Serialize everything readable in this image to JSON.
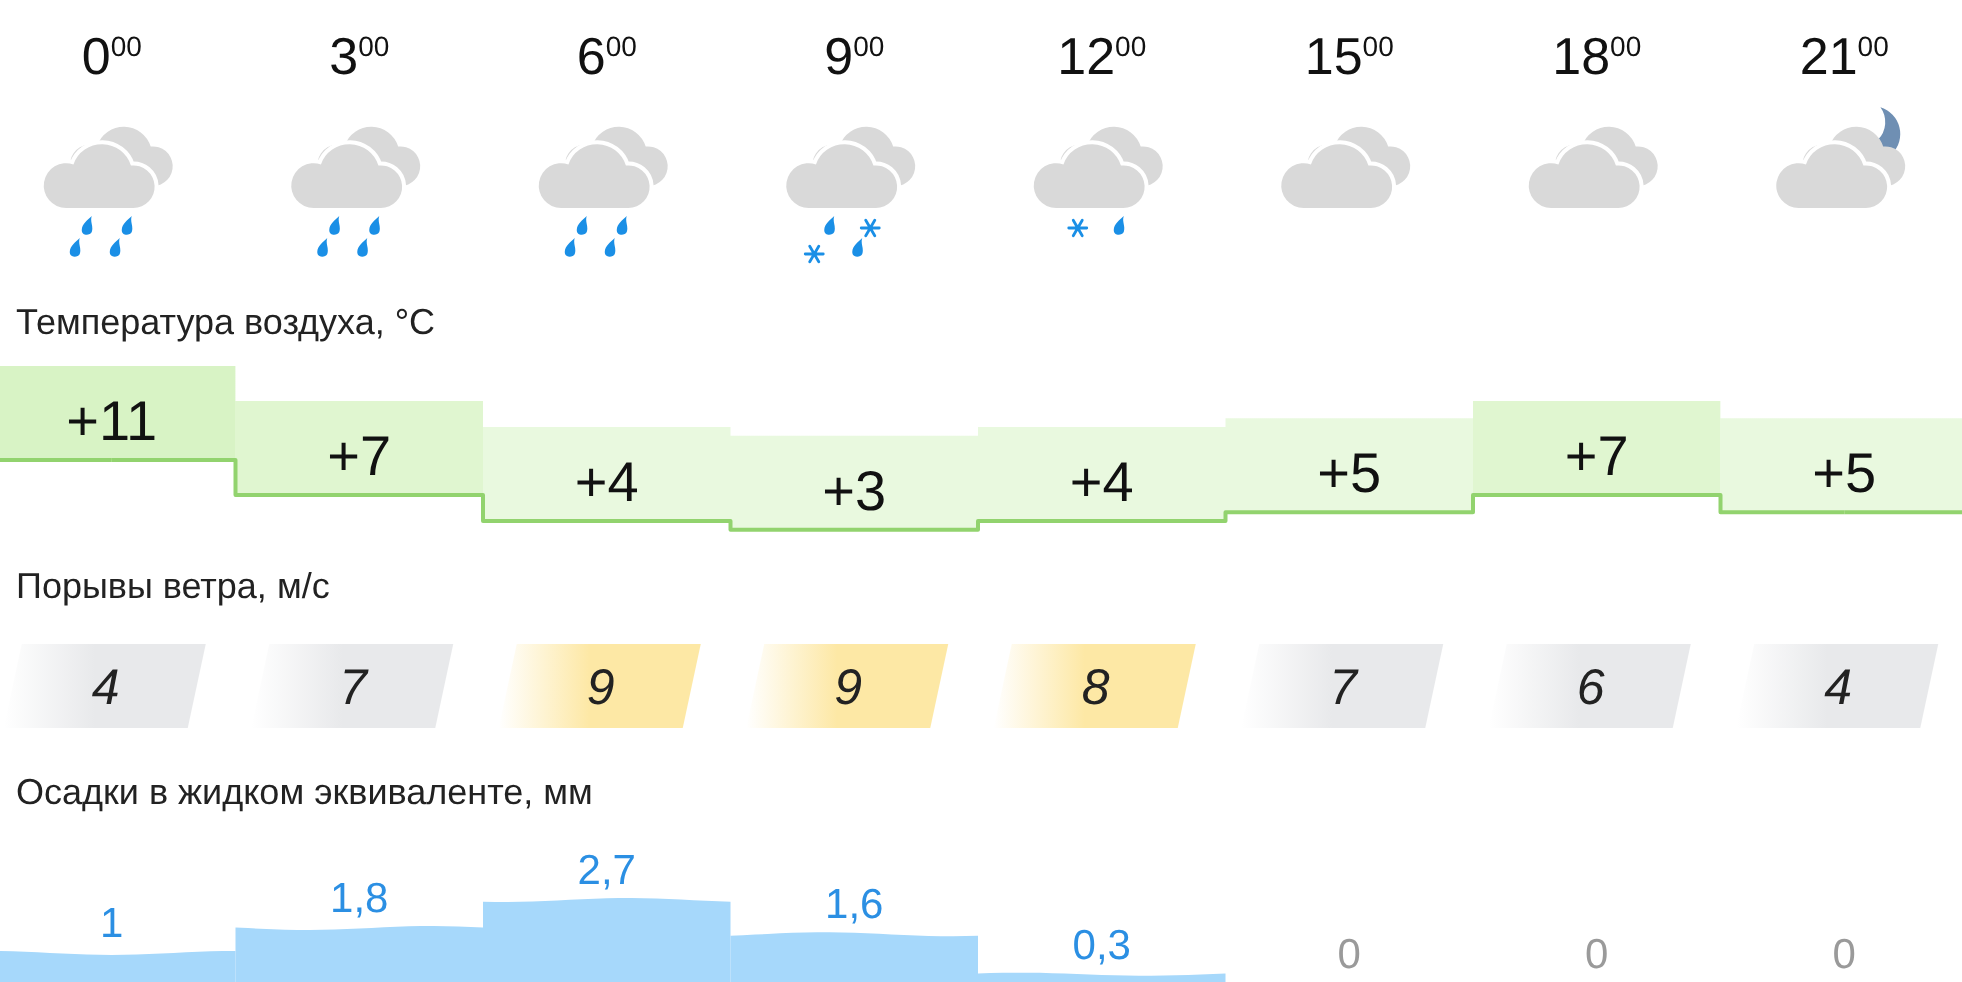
{
  "chart_data": [
    {
      "type": "step",
      "title": "Температура воздуха, °C",
      "categories": [
        "0$^{00}$",
        "3$^{00}$",
        "6$^{00}$",
        "9$^{00}$",
        "12$^{00}$",
        "15$^{00}$",
        "18$^{00}$",
        "21$^{00}$"
      ],
      "values": [
        11,
        7,
        4,
        3,
        4,
        5,
        7,
        5
      ],
      "value_labels": [
        "+11",
        "+7",
        "+4",
        "+3",
        "+4",
        "+5",
        "+7",
        "+5"
      ],
      "color": "#92d36e",
      "colors": [
        "#d8f3c5",
        "#e0f6d0",
        "#e9f9df",
        "#e9f9df",
        "#e9f9df",
        "#e9f9df",
        "#e0f6d0",
        "#e9f9df"
      ]
    },
    {
      "type": "other",
      "title": "Порывы ветра, м/с",
      "categories": [
        null,
        null,
        null,
        null,
        null,
        null,
        null,
        null
      ],
      "values": [
        4,
        7,
        9,
        9,
        8,
        7,
        6,
        4
      ],
      "colors": [
        "#e8e9eb",
        "#e8e9eb",
        "#fde8a5",
        "#fde8a5",
        "#fde8a5",
        "#e8e9eb",
        "#e8e9eb",
        "#e8e9eb"
      ],
      "data_labels": true
    },
    {
      "type": "bar",
      "title": "Осадки в жидком эквиваленте, мм",
      "categories": [
        null,
        null,
        null,
        null,
        null,
        null,
        null,
        null
      ],
      "values": [
        1,
        1.8,
        2.7,
        1.6,
        0.3,
        0,
        0,
        0
      ],
      "value_labels": [
        "1",
        "1,8",
        "2,7",
        "1,6",
        "0,3",
        "0",
        "0",
        "0"
      ],
      "color": "#a6d8fb"
    }
  ]
}
